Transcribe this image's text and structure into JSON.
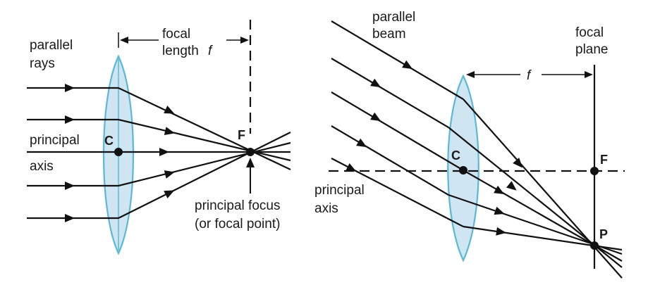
{
  "left_diagram": {
    "labels": {
      "parallel_rays_1": "parallel",
      "parallel_rays_2": "rays",
      "focal_length_1": "focal",
      "focal_length_2": "length",
      "focal_length_f": "f",
      "principal_axis_1": "principal",
      "principal_axis_2": "axis",
      "centre": "C",
      "focus": "F",
      "principal_focus_1": "principal focus",
      "principal_focus_2": "(or focal point)"
    }
  },
  "right_diagram": {
    "labels": {
      "parallel_beam_1": "parallel",
      "parallel_beam_2": "beam",
      "focal_plane_1": "focal",
      "focal_plane_2": "plane",
      "focal_length_f": "f",
      "centre": "C",
      "focus": "F",
      "point_p": "P",
      "principal_axis_1": "principal",
      "principal_axis_2": "axis"
    }
  },
  "colors": {
    "lens_fill": "#cfe6f2",
    "lens_stroke": "#5bb8d6",
    "ink": "#111111"
  }
}
